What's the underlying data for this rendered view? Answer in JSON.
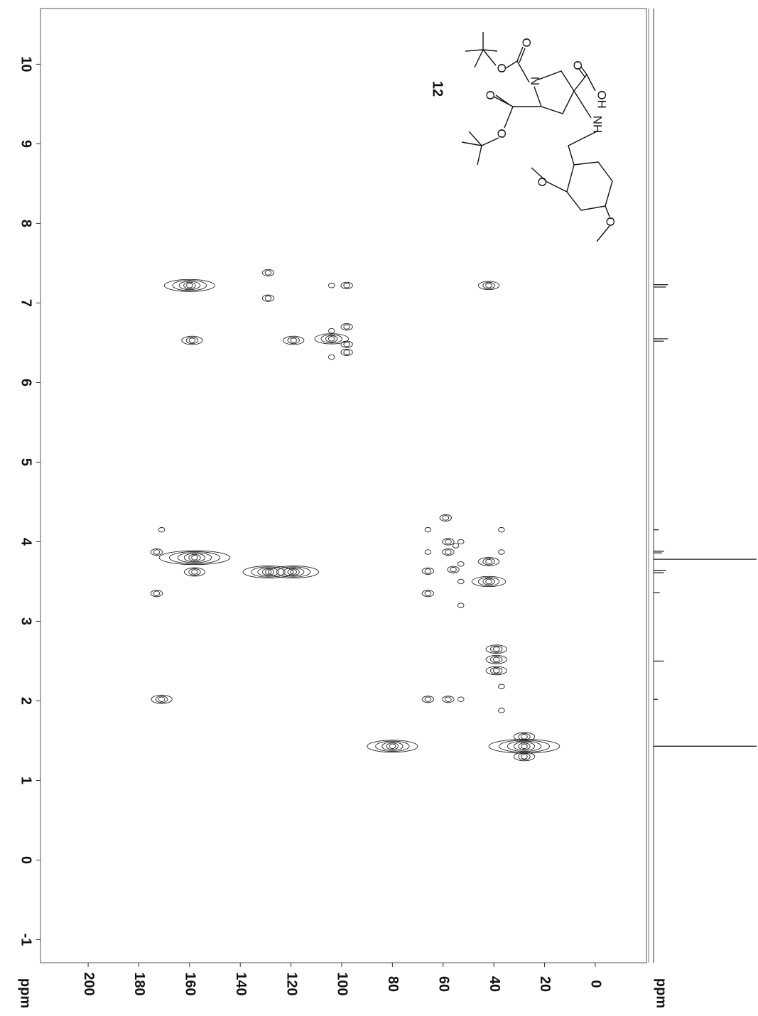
{
  "chart_data": {
    "type": "nmr2d",
    "xlabel": "ppm",
    "ylabel": "ppm",
    "compound_label": "12",
    "xlim": [
      218.8,
      -20.2
    ],
    "ylim": [
      10.7,
      -1.29
    ],
    "xticks": [
      200,
      180,
      160,
      140,
      120,
      100,
      80,
      60,
      40,
      20,
      0
    ],
    "yticks": [
      10,
      9,
      8,
      7,
      6,
      5,
      4,
      3,
      2,
      1,
      0,
      -1
    ],
    "color": "#222222",
    "cross_peaks": {
      "c": [
        160,
        129,
        129,
        98,
        104,
        42,
        159,
        119,
        104,
        98,
        98,
        98,
        104,
        104,
        171,
        59,
        66,
        37,
        173,
        158,
        66,
        58,
        58,
        53,
        55,
        42,
        37,
        158,
        129,
        119,
        66,
        56,
        53,
        53,
        42,
        173,
        66,
        53,
        39,
        39,
        39,
        171,
        66,
        58,
        53,
        37,
        37,
        80,
        28,
        28,
        28
      ],
      "h": [
        7.22,
        7.38,
        7.06,
        7.22,
        7.22,
        7.22,
        6.53,
        6.53,
        6.55,
        6.7,
        6.48,
        6.38,
        6.65,
        6.32,
        4.15,
        4.3,
        4.15,
        4.15,
        3.87,
        3.8,
        3.87,
        4.0,
        3.87,
        4.0,
        3.95,
        3.75,
        3.87,
        3.62,
        3.62,
        3.62,
        3.63,
        3.65,
        3.72,
        3.5,
        3.5,
        3.35,
        3.35,
        3.2,
        2.65,
        2.52,
        2.38,
        2.02,
        2.02,
        2.02,
        2.02,
        2.18,
        1.88,
        1.43,
        1.55,
        1.43,
        1.3
      ],
      "intensity": [
        5,
        2,
        2,
        2,
        1,
        3,
        3,
        3,
        4,
        2,
        2,
        2,
        1,
        1,
        1,
        2,
        1,
        1,
        2,
        6,
        1,
        2,
        2,
        1,
        1,
        3,
        1,
        3,
        5,
        5,
        2,
        2,
        1,
        1,
        4,
        2,
        2,
        1,
        3,
        3,
        3,
        3,
        2,
        2,
        1,
        1,
        1,
        5,
        3,
        6,
        3
      ]
    },
    "projection": {
      "h": [
        7.23,
        7.2,
        6.55,
        6.52,
        4.15,
        3.88,
        3.86,
        3.78,
        3.64,
        3.61,
        3.36,
        2.5,
        2.02,
        1.43
      ],
      "intensity": [
        14,
        12,
        14,
        10,
        5,
        10,
        8,
        100,
        12,
        10,
        6,
        10,
        4,
        100
      ]
    },
    "structure_labels": [
      "O",
      "O",
      "N",
      "O",
      "OH",
      "O",
      "O",
      "NH",
      "O",
      "O"
    ]
  }
}
